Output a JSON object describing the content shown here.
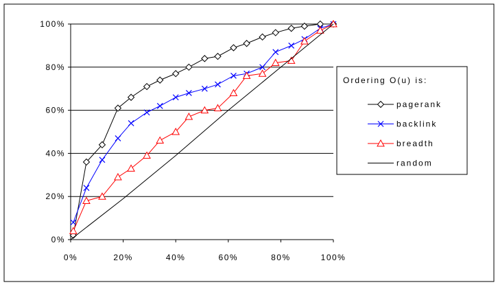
{
  "chart_data": {
    "type": "line",
    "title": "",
    "xlabel": "",
    "ylabel": "",
    "xlim": [
      0,
      100
    ],
    "ylim": [
      0,
      100
    ],
    "x_ticks": [
      "0%",
      "20%",
      "40%",
      "60%",
      "80%",
      "100%"
    ],
    "y_ticks": [
      "0%",
      "20%",
      "40%",
      "60%",
      "80%",
      "100%"
    ],
    "grid": "horizontal",
    "legend": {
      "title": "Ordering O(u) is:",
      "placement": "right"
    },
    "series": [
      {
        "name": "pagerank",
        "color": "#000000",
        "marker": "diamond",
        "x": [
          1,
          6,
          12,
          18,
          23,
          29,
          34,
          40,
          45,
          51,
          56,
          62,
          67,
          73,
          78,
          84,
          89,
          95,
          100
        ],
        "y": [
          2,
          36,
          44,
          61,
          66,
          71,
          74,
          77,
          80,
          84,
          85,
          89,
          91,
          94,
          96,
          98,
          99,
          100,
          100
        ]
      },
      {
        "name": "backlink",
        "color": "#0000ff",
        "marker": "x",
        "x": [
          1,
          6,
          12,
          18,
          23,
          29,
          34,
          40,
          45,
          51,
          56,
          62,
          67,
          73,
          78,
          84,
          89,
          95,
          100
        ],
        "y": [
          8,
          24,
          37,
          47,
          54,
          59,
          62,
          66,
          68,
          70,
          72,
          76,
          77,
          80,
          87,
          90,
          93,
          98,
          100
        ]
      },
      {
        "name": "breadth",
        "color": "#ff0000",
        "marker": "triangle",
        "x": [
          1,
          6,
          12,
          18,
          23,
          29,
          34,
          40,
          45,
          51,
          56,
          62,
          67,
          73,
          78,
          84,
          89,
          95,
          100
        ],
        "y": [
          4,
          18,
          20,
          29,
          33,
          39,
          46,
          50,
          57,
          60,
          61,
          68,
          76,
          77,
          82,
          83,
          92,
          97,
          100
        ]
      },
      {
        "name": "random",
        "color": "#000000",
        "marker": "none",
        "x": [
          0,
          20,
          40,
          60,
          80,
          100
        ],
        "y": [
          0,
          19,
          39,
          60,
          80,
          100
        ]
      }
    ]
  }
}
